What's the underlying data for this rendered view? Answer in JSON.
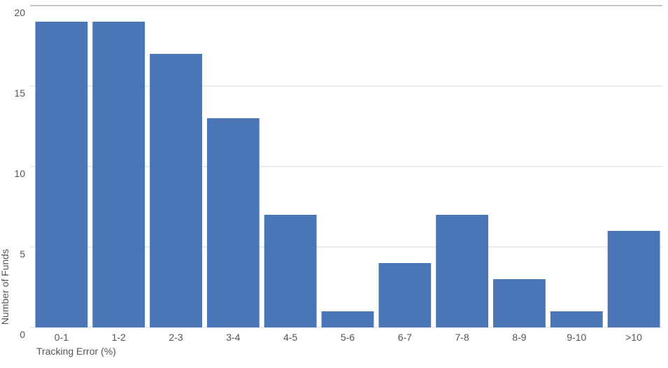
{
  "chart_data": {
    "type": "bar",
    "title": "",
    "xlabel": "Tracking Error (%)",
    "ylabel": "Number of Funds",
    "categories": [
      "0-1",
      "1-2",
      "2-3",
      "3-4",
      "4-5",
      "5-6",
      "6-7",
      "7-8",
      "8-9",
      "9-10",
      ">10"
    ],
    "values": [
      19,
      19,
      17,
      13,
      7,
      1,
      4,
      7,
      3,
      1,
      6
    ],
    "ylim": [
      0,
      20
    ],
    "yticks": [
      0,
      5,
      10,
      15,
      20
    ],
    "grid": true,
    "colors": {
      "bar": "#4a75b7",
      "grid": "#d9d9d9",
      "text": "#555555"
    }
  }
}
